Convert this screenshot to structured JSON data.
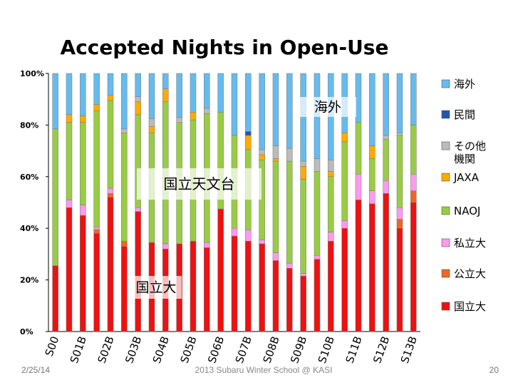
{
  "slide": {
    "title": "Accepted Nights in Open-Use",
    "date": "2/25/14",
    "center_footer": "2013 Subaru Winter School @ KASI",
    "page_number": "20"
  },
  "chart_data": {
    "type": "bar",
    "stacked": true,
    "normalized": true,
    "title": "Accepted Nights in Open-Use",
    "ylim": [
      0,
      100
    ],
    "yticks": [
      "0%",
      "20%",
      "40%",
      "60%",
      "80%",
      "100%"
    ],
    "categories": [
      "S00",
      "S01B",
      "S01A",
      "S02B",
      "S02A",
      "S03B",
      "S03A",
      "S04B",
      "S04A",
      "S05B",
      "S05A",
      "S06B",
      "S06A",
      "S07B",
      "S07A",
      "S08B",
      "S08A",
      "S09B",
      "S09A",
      "S10B",
      "S10A",
      "S11B",
      "S11A",
      "S12B",
      "S12A",
      "S13B",
      "S13A"
    ],
    "xtick_labels": [
      "S00",
      "S01B",
      "S02B",
      "S03B",
      "S04B",
      "S05B",
      "S06B",
      "S07B",
      "S08B",
      "S09B",
      "S10B",
      "S11B",
      "S12B",
      "S13B"
    ],
    "series": [
      {
        "name": "国立大",
        "color": "#ee1111",
        "values": [
          25.5,
          48,
          45,
          38,
          52,
          33,
          46.5,
          34.5,
          32,
          34,
          35,
          32.5,
          47.5,
          37,
          35,
          34,
          27.5,
          24.5,
          21.5,
          28,
          35,
          40,
          51,
          49.5,
          53.5,
          40,
          50
        ]
      },
      {
        "name": "公立大",
        "color": "#ee6622",
        "values": [
          0,
          0,
          0,
          1.5,
          1.5,
          2,
          0,
          0,
          0,
          0,
          0,
          0,
          0,
          0,
          0,
          0,
          0,
          0,
          0,
          0,
          0,
          0,
          0,
          0,
          0,
          3.5,
          4.5
        ]
      },
      {
        "name": "私立大",
        "color": "#ff99ee",
        "values": [
          0,
          3,
          4,
          1,
          2,
          0,
          1.5,
          0,
          2,
          0,
          0,
          2,
          0,
          3,
          4.5,
          1.5,
          3,
          2,
          1,
          1.5,
          3.5,
          3,
          10,
          5,
          5,
          4.5,
          6.5
        ]
      },
      {
        "name": "NAOJ",
        "color": "#99cc44",
        "values": [
          53,
          30,
          32,
          45,
          34,
          42,
          36,
          42.5,
          55,
          47,
          47,
          50,
          37.5,
          36,
          31,
          31,
          35.5,
          39.5,
          36.5,
          32.5,
          21.5,
          30.5,
          20,
          12.5,
          16,
          28,
          19
        ]
      },
      {
        "name": "JAXA",
        "color": "#ffaa00",
        "values": [
          0,
          3,
          2.5,
          2.5,
          2,
          0,
          5,
          2.5,
          5,
          0,
          3,
          0,
          0,
          0,
          5.5,
          2,
          1,
          0,
          5,
          0,
          2,
          3.5,
          0,
          5,
          0,
          0,
          0
        ]
      },
      {
        "name": "その他 機関",
        "color": "#bbbbbb",
        "values": [
          0,
          0,
          0,
          0,
          0,
          1.5,
          2,
          3,
          0,
          2,
          0,
          2,
          0,
          0,
          0,
          2,
          5,
          5,
          2,
          5,
          4.5,
          0,
          0,
          0,
          1.5,
          1,
          0
        ]
      },
      {
        "name": "民間",
        "color": "#2255aa",
        "values": [
          0,
          0,
          0,
          0,
          0,
          0,
          0,
          0,
          0,
          0,
          0,
          0,
          0,
          0,
          1.5,
          0,
          0,
          0,
          0,
          0,
          0,
          0,
          0,
          0,
          0,
          0,
          0
        ]
      },
      {
        "name": "海外",
        "color": "#66bbee",
        "values": [
          21.5,
          16,
          16.5,
          12,
          8.5,
          21.5,
          9,
          17.5,
          6,
          17,
          15,
          13.5,
          15,
          24,
          22.5,
          29.5,
          28,
          29,
          34,
          33,
          33.5,
          23,
          19,
          28,
          24,
          23,
          20
        ]
      }
    ],
    "legend_position": "right",
    "annotations": [
      "海外",
      "国立天文台",
      "国立大"
    ]
  }
}
